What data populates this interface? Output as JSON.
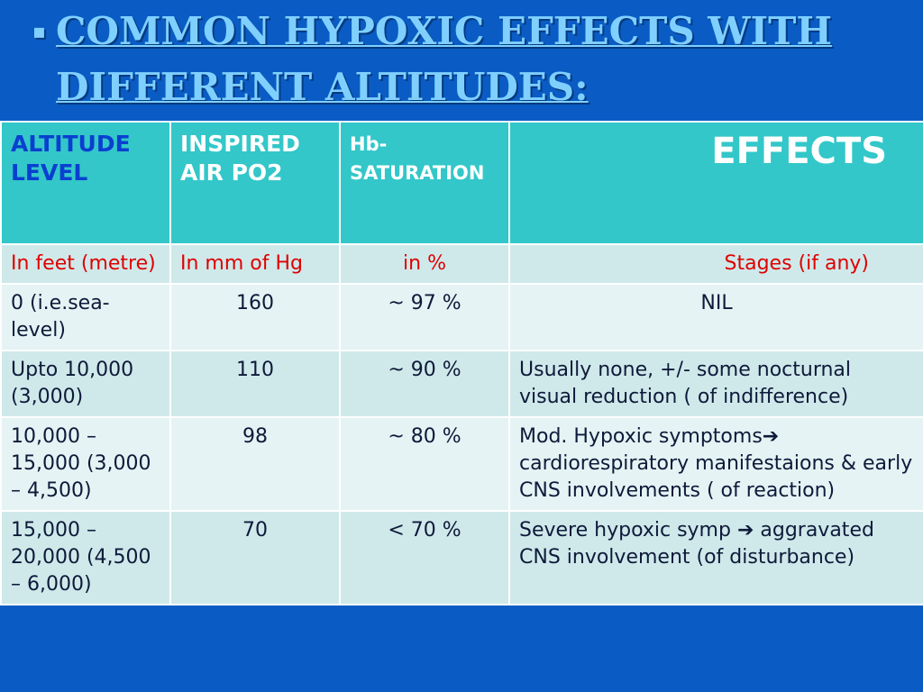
{
  "title": {
    "bullet": "▪",
    "text": "Common Hypoxic effects with different Altitudes:"
  },
  "table": {
    "headers": [
      "ALTITUDE LEVEL",
      "INSPIRED AIR PO2",
      "Hb-SATURATION",
      "EFFECTS"
    ],
    "units": [
      "In feet (metre)",
      "In mm of Hg",
      "in %",
      "Stages (if any)"
    ],
    "rows": [
      [
        "0 (i.e.sea-level)",
        "160",
        "~ 97 %",
        "NIL"
      ],
      [
        " Upto 10,000 (3,000)",
        "110",
        "~ 90 %",
        "Usually none, +/-  some nocturnal visual reduction ( of indifference)"
      ],
      [
        "10,000 – 15,000 (3,000 – 4,500)",
        "98",
        "~ 80 %",
        "Mod. Hypoxic symptoms➔ cardiorespiratory manifestaions & early CNS involvements ( of reaction)"
      ],
      [
        "15,000 – 20,000 (4,500 – 6,000)",
        "70",
        "< 70 %",
        "Severe hypoxic symp ➔ aggravated CNS involvement (of disturbance)"
      ]
    ]
  },
  "colors": {
    "background": "#0a5cc4",
    "title": "#7fd0ff",
    "header_bg": "#33c7c9",
    "header_first_text": "#0a3fd0",
    "units_text": "#e00000",
    "row_odd": "#cfe9ea",
    "row_even": "#e5f3f4"
  }
}
